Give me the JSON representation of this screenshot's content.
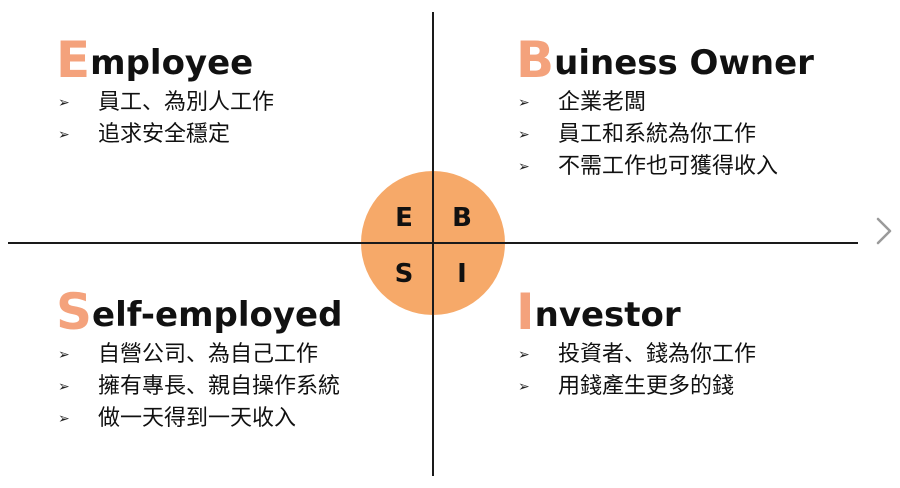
{
  "center": {
    "e": "E",
    "b": "B",
    "s": "S",
    "i": "I"
  },
  "accent_color": "#f4a27c",
  "circle_color": "#f6a969",
  "quadrants": {
    "employee": {
      "first_letter": "E",
      "rest": "mployee",
      "items": [
        "員工、為別人工作",
        "追求安全穩定"
      ]
    },
    "business_owner": {
      "first_letter": "B",
      "rest": "uiness Owner",
      "items": [
        "企業老闆",
        "員工和系統為你工作",
        "不需工作也可獲得收入"
      ]
    },
    "self_employed": {
      "first_letter": "S",
      "rest": "elf-employed",
      "items": [
        "自營公司、為自己工作",
        "擁有專長、親自操作系統",
        "做一天得到一天收入"
      ]
    },
    "investor": {
      "first_letter": "I",
      "rest": "nvestor",
      "items": [
        "投資者、錢為你工作",
        "用錢產生更多的錢"
      ]
    }
  },
  "bullet_glyph": "➢",
  "nav": {
    "next_icon": "chevron-right-icon"
  }
}
